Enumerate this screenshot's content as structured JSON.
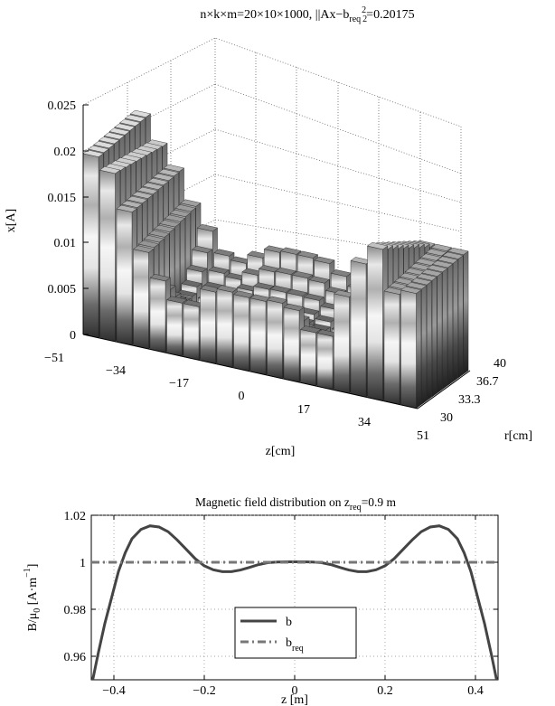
{
  "chart_data": [
    {
      "type": "bar3d",
      "title_main": "n×k×m=20×10×1000, ||Ax−b",
      "title_sub": "req",
      "title_norm_sub": "2",
      "title_norm_sup": "2",
      "title_tail": "=0.20175",
      "zlabel": "x[A]",
      "xlabel": "z[cm]",
      "ylabel": "r[cm]",
      "z_ticks": [
        "0",
        "0.005",
        "0.01",
        "0.015",
        "0.02",
        "0.025"
      ],
      "z_lim": [
        0,
        0.025
      ],
      "x_ticks": [
        "−51",
        "−34",
        "−17",
        "0",
        "17",
        "34",
        "51"
      ],
      "x_lim": [
        -51,
        51
      ],
      "y_ticks": [
        "30",
        "33.3",
        "36.7",
        "40"
      ],
      "y_lim": [
        30,
        40
      ],
      "grid": true,
      "colormap": "gray",
      "z_positions": [
        -51,
        -45.6,
        -40.3,
        -35,
        -29.5,
        -24.2,
        -18.8,
        -13.4,
        -8.1,
        -2.7,
        2.7,
        8.1,
        13.4,
        18.8,
        24.2,
        29.5,
        35,
        40.3,
        45.6,
        51
      ],
      "r_positions": [
        30,
        31.1,
        32.2,
        33.3,
        34.4,
        35.6,
        36.7,
        37.8,
        38.9,
        40
      ],
      "front_row_values": [
        0.0197,
        0.0183,
        0.0145,
        0.0105,
        0.0078,
        0.0058,
        0.0058,
        0.0078,
        0.0082,
        0.008,
        0.008,
        0.0082,
        0.0078,
        0.0058,
        0.0058,
        0.0105,
        0.0145,
        0.0165,
        0.012,
        0.0125
      ],
      "back_row_values": [
        0.0203,
        0.0175,
        0.0152,
        0.0118,
        0.0095,
        0.0072,
        0.0068,
        0.0078,
        0.0088,
        0.009,
        0.009,
        0.0088,
        0.0078,
        0.0068,
        0.0035,
        0.0025,
        0.006,
        0.013,
        0.013,
        0.013
      ]
    },
    {
      "type": "line",
      "title_main": "Magnetic field distribution on z",
      "title_sub": "req",
      "title_tail": "=0.9 m",
      "xlabel": "z [m]",
      "ylabel_main": "B/μ",
      "ylabel_sub": "0",
      "ylabel_units": "[A·m",
      "ylabel_sup": "−1",
      "ylabel_close": "]",
      "xlim": [
        -0.45,
        0.45
      ],
      "ylim": [
        0.95,
        1.02
      ],
      "x_ticks": [
        -0.4,
        -0.2,
        0,
        0.2,
        0.4
      ],
      "x_tick_labels": [
        "−0.4",
        "−0.2",
        "0",
        "0.2",
        "0.4"
      ],
      "y_ticks": [
        0.96,
        0.98,
        1,
        1.02
      ],
      "y_tick_labels": [
        "0.96",
        "0.98",
        "1",
        "1.02"
      ],
      "grid": true,
      "legend_position": "bottom-center",
      "series": [
        {
          "name": "b",
          "legend_sub": "",
          "style": "solid",
          "color": "#444444",
          "x": [
            -0.45,
            -0.435,
            -0.42,
            -0.405,
            -0.39,
            -0.375,
            -0.36,
            -0.34,
            -0.32,
            -0.3,
            -0.28,
            -0.26,
            -0.24,
            -0.22,
            -0.2,
            -0.18,
            -0.16,
            -0.14,
            -0.12,
            -0.1,
            -0.08,
            -0.06,
            -0.04,
            -0.02,
            0,
            0.02,
            0.04,
            0.06,
            0.08,
            0.1,
            0.12,
            0.14,
            0.16,
            0.18,
            0.2,
            0.22,
            0.24,
            0.26,
            0.28,
            0.3,
            0.32,
            0.34,
            0.36,
            0.375,
            0.39,
            0.405,
            0.42,
            0.435,
            0.45
          ],
          "y": [
            0.947,
            0.961,
            0.974,
            0.985,
            0.996,
            1.004,
            1.01,
            1.014,
            1.0155,
            1.015,
            1.013,
            1.0095,
            1.0055,
            1.0015,
            0.9985,
            0.9968,
            0.996,
            0.996,
            0.9967,
            0.9978,
            0.999,
            0.9998,
            1.0001,
            1.0002,
            1.0002,
            1.0002,
            1.0001,
            0.9998,
            0.999,
            0.9978,
            0.9967,
            0.996,
            0.996,
            0.9968,
            0.9985,
            1.0015,
            1.0055,
            1.0095,
            1.013,
            1.015,
            1.0155,
            1.014,
            1.01,
            1.004,
            0.996,
            0.985,
            0.974,
            0.961,
            0.947
          ]
        },
        {
          "name": "b",
          "legend_sub": "req",
          "style": "dashdot",
          "color": "#777777",
          "x": [
            -0.45,
            0.45
          ],
          "y": [
            1,
            1
          ]
        }
      ]
    }
  ]
}
